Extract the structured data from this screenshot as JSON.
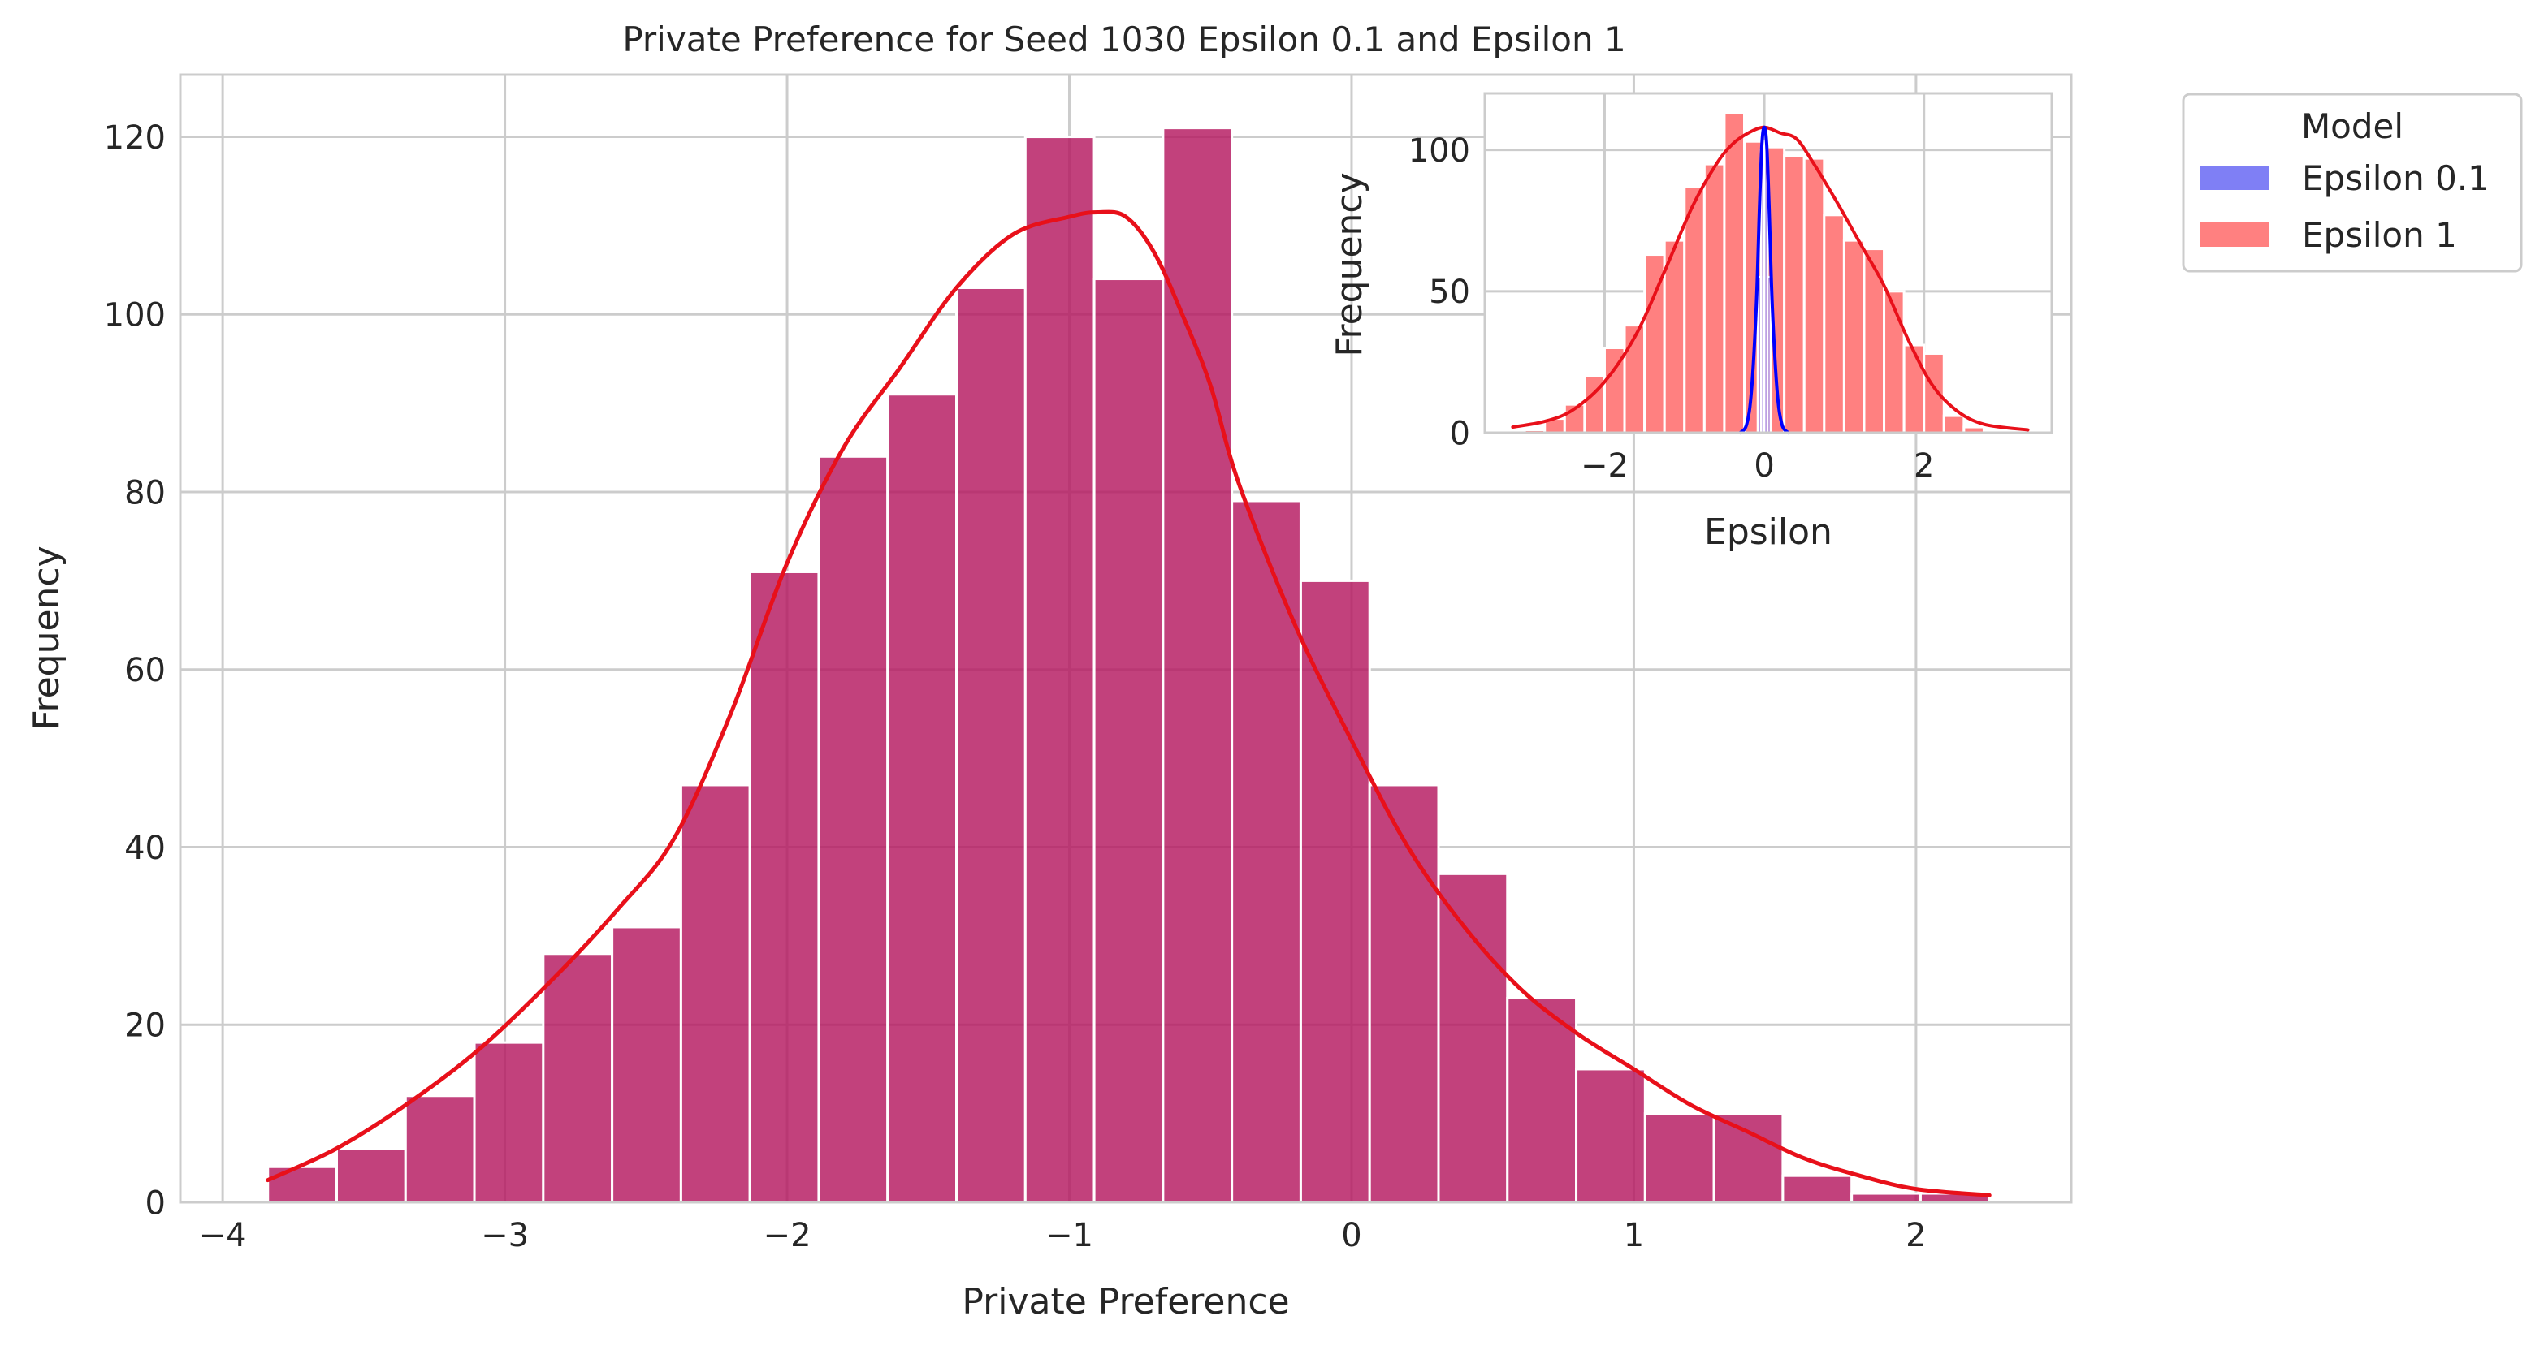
{
  "chart_data": [
    {
      "id": "main",
      "type": "bar",
      "title": "Private Preference for Seed 1030 Epsilon 0.1 and Epsilon 1",
      "xlabel": "Private Preference",
      "ylabel": "Frequency",
      "xlim": [
        -4.15,
        2.55
      ],
      "ylim": [
        0,
        127
      ],
      "xticks": [
        -4,
        -3,
        -2,
        -1,
        0,
        1,
        2
      ],
      "xtick_labels": [
        "−4",
        "−3",
        "−2",
        "−1",
        "0",
        "1",
        "2"
      ],
      "yticks": [
        0,
        20,
        40,
        60,
        80,
        100,
        120
      ],
      "grid": true,
      "bin_edges": [
        -3.84,
        -3.596,
        -3.352,
        -3.108,
        -2.864,
        -2.62,
        -2.376,
        -2.132,
        -1.888,
        -1.644,
        -1.4,
        -1.156,
        -0.912,
        -0.668,
        -0.424,
        -0.18,
        0.064,
        0.308,
        0.552,
        0.796,
        1.04,
        1.284,
        1.528,
        1.772,
        2.016,
        2.26
      ],
      "values": [
        4,
        6,
        12,
        18,
        28,
        31,
        47,
        71,
        84,
        91,
        103,
        120,
        104,
        121,
        79,
        70,
        47,
        37,
        23,
        15,
        10,
        10,
        3,
        1,
        1
      ],
      "bar_color": "#b5175f",
      "kde": {
        "color": "#e8101a",
        "x": [
          -3.84,
          -3.6,
          -3.35,
          -3.1,
          -2.85,
          -2.6,
          -2.4,
          -2.2,
          -2.0,
          -1.8,
          -1.6,
          -1.4,
          -1.2,
          -1.0,
          -0.9,
          -0.8,
          -0.7,
          -0.6,
          -0.5,
          -0.4,
          -0.2,
          0.0,
          0.2,
          0.4,
          0.6,
          0.8,
          1.0,
          1.2,
          1.4,
          1.6,
          1.8,
          2.0,
          2.26
        ],
        "y": [
          2.5,
          6,
          11,
          17,
          24.5,
          33,
          41,
          55,
          72,
          85,
          94,
          103,
          109,
          111,
          111.5,
          111,
          107,
          100,
          92,
          81,
          65,
          52,
          40,
          31,
          24,
          19,
          15,
          11,
          8,
          5,
          3,
          1.5,
          0.8
        ]
      }
    },
    {
      "id": "inset",
      "type": "bar",
      "title": "",
      "xlabel": "Epsilon",
      "ylabel": "Frequency",
      "xlim": [
        -3.5,
        3.6
      ],
      "ylim": [
        0,
        120
      ],
      "xticks": [
        -2,
        0,
        2
      ],
      "xtick_labels": [
        "−2",
        "0",
        "2"
      ],
      "yticks": [
        0,
        50,
        100
      ],
      "grid": true,
      "legend": {
        "title": "Model",
        "location": "outside-upper-right",
        "entries": [
          {
            "name": "Epsilon 0.1",
            "color": "#7f7ff5"
          },
          {
            "name": "Epsilon 1",
            "color": "#ff8080"
          }
        ]
      },
      "series": [
        {
          "name": "Epsilon 1",
          "color": "#ff8080",
          "bin_edges": [
            -3.0,
            -2.75,
            -2.5,
            -2.25,
            -2.0,
            -1.75,
            -1.5,
            -1.25,
            -1.0,
            -0.75,
            -0.5,
            -0.25,
            0.0,
            0.25,
            0.5,
            0.75,
            1.0,
            1.25,
            1.5,
            1.75,
            2.0,
            2.25,
            2.5,
            2.75
          ],
          "values": [
            1,
            5,
            10,
            20,
            30,
            38,
            63,
            68,
            87,
            95,
            113,
            103,
            101,
            98,
            97,
            77,
            68,
            65,
            50,
            31,
            28,
            6,
            2
          ],
          "kde": {
            "color": "#e8101a",
            "x": [
              -3.15,
              -2.75,
              -2.4,
              -2.0,
              -1.6,
              -1.25,
              -0.9,
              -0.6,
              -0.4,
              -0.2,
              0.0,
              0.2,
              0.4,
              0.6,
              0.9,
              1.2,
              1.5,
              1.8,
              2.1,
              2.4,
              2.75,
              3.3
            ],
            "y": [
              2,
              4,
              8,
              18,
              35,
              57,
              80,
              95,
              102,
              106,
              108,
              106,
              104,
              96,
              82,
              67,
              52,
              33,
              17,
              8,
              3,
              1
            ]
          }
        },
        {
          "name": "Epsilon 0.1",
          "color": "#0000ff",
          "bin_edges": [
            -0.08,
            -0.04,
            0.0,
            0.04,
            0.08
          ],
          "values": [
            55,
            100,
            100,
            55
          ],
          "kde": {
            "color": "#0000ff",
            "x": [
              -0.3,
              -0.22,
              -0.16,
              -0.1,
              -0.06,
              -0.03,
              0.0,
              0.03,
              0.06,
              0.1,
              0.16,
              0.22,
              0.3
            ],
            "y": [
              0,
              3,
              15,
              45,
              80,
              102,
              108,
              102,
              80,
              45,
              15,
              3,
              0
            ]
          }
        }
      ]
    }
  ]
}
